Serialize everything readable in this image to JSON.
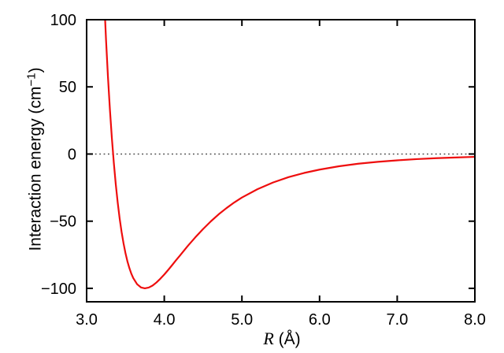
{
  "figure": {
    "background": "#ffffff",
    "frame_color": "#000000",
    "tick_label_color": "#000000"
  },
  "chart_data": {
    "type": "line",
    "title": "",
    "xlabel": "R (Å)",
    "ylabel": "Interaction energy (cm−1)",
    "xlabel_parts": {
      "symbol": "R",
      "rest": " (Å)"
    },
    "ylabel_parts": {
      "prefix": "Interaction energy (cm",
      "superscript": "−1",
      "suffix": ")"
    },
    "xlim": [
      3.0,
      8.0
    ],
    "ylim": [
      -110,
      100
    ],
    "grid": false,
    "legend": false,
    "tick_direction": "in",
    "mirrored_ticks": true,
    "x_ticks": {
      "values": [
        3.0,
        4.0,
        5.0,
        6.0,
        7.0,
        8.0
      ],
      "labels": [
        "3.0",
        "4.0",
        "5.0",
        "6.0",
        "7.0",
        "8.0"
      ]
    },
    "y_ticks": {
      "values": [
        100,
        50,
        0,
        -50,
        -100
      ],
      "labels": [
        "100",
        "50",
        "0",
        "−50",
        "−100"
      ]
    },
    "reference_line": {
      "y": 0,
      "style": "dotted",
      "color": "#4a4a4a"
    },
    "series": [
      {
        "name": "interaction-energy-curve",
        "type": "line",
        "color": "#ee0e0e",
        "width": 2.2,
        "well_depth": -100,
        "well_position": 3.75,
        "zero_crossing": 3.34,
        "points": [
          [
            3.2,
            152.8
          ],
          [
            3.225,
            116.6
          ],
          [
            3.25,
            84.9
          ],
          [
            3.275,
            57.2
          ],
          [
            3.3,
            33.0
          ],
          [
            3.325,
            11.9
          ],
          [
            3.35,
            -6.4
          ],
          [
            3.375,
            -22.3
          ],
          [
            3.4,
            -36.0
          ],
          [
            3.425,
            -47.8
          ],
          [
            3.45,
            -57.9
          ],
          [
            3.475,
            -66.4
          ],
          [
            3.5,
            -73.7
          ],
          [
            3.525,
            -79.8
          ],
          [
            3.55,
            -84.8
          ],
          [
            3.575,
            -89.0
          ],
          [
            3.6,
            -92.3
          ],
          [
            3.65,
            -96.9
          ],
          [
            3.7,
            -99.3
          ],
          [
            3.75,
            -100.0
          ],
          [
            3.8,
            -99.4
          ],
          [
            3.85,
            -97.9
          ],
          [
            3.9,
            -95.6
          ],
          [
            3.95,
            -92.8
          ],
          [
            4.0,
            -89.7
          ],
          [
            4.05,
            -86.3
          ],
          [
            4.1,
            -82.8
          ],
          [
            4.15,
            -79.2
          ],
          [
            4.2,
            -75.7
          ],
          [
            4.3,
            -68.6
          ],
          [
            4.4,
            -62.0
          ],
          [
            4.5,
            -55.8
          ],
          [
            4.6,
            -50.1
          ],
          [
            4.7,
            -44.9
          ],
          [
            4.8,
            -40.3
          ],
          [
            4.9,
            -36.1
          ],
          [
            5.0,
            -32.4
          ],
          [
            5.2,
            -26.2
          ],
          [
            5.4,
            -21.2
          ],
          [
            5.6,
            -17.2
          ],
          [
            5.8,
            -14.1
          ],
          [
            6.0,
            -11.6
          ],
          [
            6.25,
            -9.1
          ],
          [
            6.5,
            -7.2
          ],
          [
            6.75,
            -5.8
          ],
          [
            7.0,
            -4.7
          ],
          [
            7.25,
            -3.8
          ],
          [
            7.5,
            -3.1
          ],
          [
            7.75,
            -2.6
          ],
          [
            8.0,
            -2.1
          ]
        ]
      }
    ]
  }
}
